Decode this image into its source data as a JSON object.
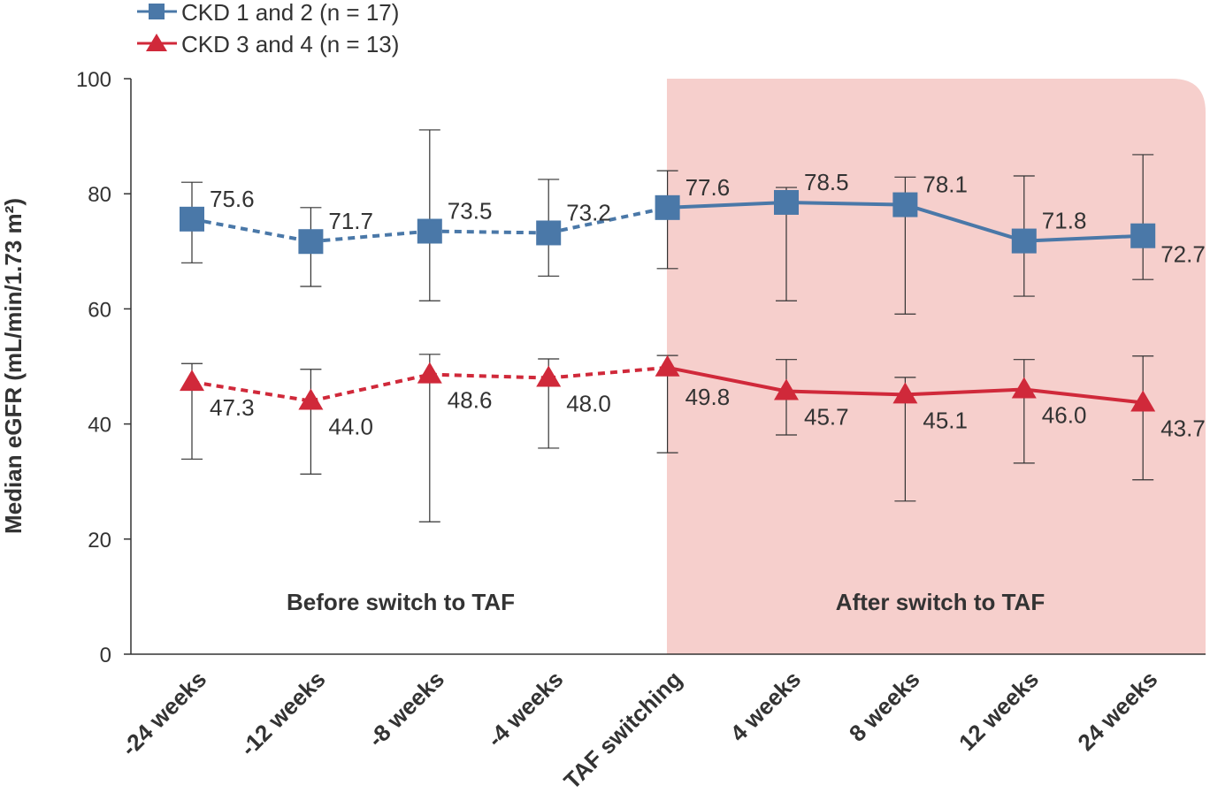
{
  "chart_data": {
    "type": "line",
    "title": "",
    "ylabel": "Median eGFR (mL/min/1.73 m²)",
    "xlabel": "",
    "ylim": [
      0,
      100
    ],
    "yticks": [
      0,
      20,
      40,
      60,
      80,
      100
    ],
    "categories": [
      "-24 weeks",
      "-12 weeks",
      "-8 weeks",
      "-4 weeks",
      "TAF switching",
      "4 weeks",
      "8 weeks",
      "12 weeks",
      "24 weeks"
    ],
    "regions": [
      {
        "label": "Before switch to TAF"
      },
      {
        "label": "After switch to TAF",
        "shaded_from": "TAF switching",
        "color": "#f6cfcc"
      }
    ],
    "legend_position": "top-left",
    "series": [
      {
        "name": "CKD 1 and 2 (n = 17)",
        "color": "#4a78a8",
        "marker": "square",
        "values": [
          75.6,
          71.7,
          73.5,
          73.2,
          77.6,
          78.5,
          78.1,
          71.8,
          72.7
        ],
        "upper": [
          82.0,
          77.6,
          91.1,
          82.5,
          84.0,
          81.1,
          82.9,
          83.1,
          86.8
        ],
        "lower": [
          68.0,
          63.9,
          61.4,
          65.7,
          67.0,
          61.4,
          59.1,
          62.2,
          65.1
        ]
      },
      {
        "name": "CKD 3 and 4 (n = 13)",
        "color": "#d0293a",
        "marker": "triangle",
        "values": [
          47.3,
          44.0,
          48.6,
          48.0,
          49.8,
          45.7,
          45.1,
          46.0,
          43.7
        ],
        "upper": [
          50.5,
          49.5,
          52.1,
          51.3,
          51.9,
          51.2,
          48.1,
          51.2,
          51.8
        ],
        "lower": [
          33.9,
          31.3,
          23.0,
          35.8,
          35.0,
          38.1,
          26.6,
          33.2,
          30.3
        ]
      }
    ]
  }
}
